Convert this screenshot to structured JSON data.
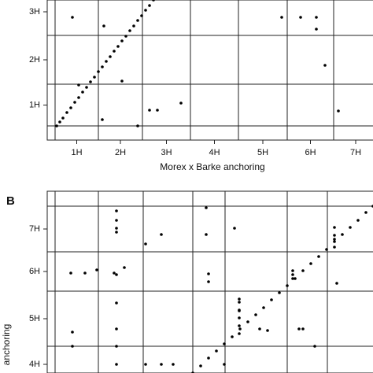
{
  "chart_data": [
    {
      "type": "scatter",
      "x_label": "Morex x Barke anchoring",
      "xlim": [
        -10,
        404
      ],
      "ylim": [
        -18,
        160
      ],
      "xgrid": [
        0,
        55,
        111,
        172,
        233,
        295,
        354,
        410
      ],
      "x_categories": [
        "1H",
        "2H",
        "3H",
        "4H",
        "5H",
        "6H",
        "7H"
      ],
      "ygrid": [
        0,
        53,
        115,
        175
      ],
      "y_categories": [
        "1H",
        "2H",
        "3H"
      ],
      "series": [
        {
          "color": "#000000",
          "x": [
            2,
            6,
            10,
            15,
            20,
            25,
            30,
            35,
            40,
            45,
            50,
            55,
            60,
            65,
            70,
            75,
            80,
            85,
            90,
            95,
            100,
            105,
            110,
            115,
            120,
            125,
            22,
            62,
            288,
            312,
            332,
            332,
            30,
            85,
            60,
            120,
            130,
            160,
            105,
            343,
            360
          ],
          "values": [
            0,
            5,
            10,
            17,
            23,
            30,
            36,
            43,
            49,
            56,
            62,
            69,
            75,
            82,
            88,
            95,
            101,
            108,
            114,
            121,
            127,
            134,
            140,
            147,
            153,
            160,
            138,
            127,
            138,
            138,
            138,
            123,
            52,
            57,
            8,
            20,
            20,
            29,
            0,
            77,
            19
          ]
        }
      ]
    },
    {
      "type": "scatter",
      "panel_label": "B",
      "y_label": "anchoring",
      "xlim": [
        -10,
        404
      ],
      "ylim": [
        0,
        231
      ],
      "xgrid": [
        0,
        55,
        112,
        175,
        216,
        295,
        346
      ],
      "ygrid": [
        -12,
        34,
        104,
        154,
        212
      ],
      "y_categories": [
        "4H",
        "5H",
        "6H",
        "7H"
      ],
      "series": [
        {
          "color": "#000000",
          "x": [
            175,
            185,
            195,
            205,
            215,
            225,
            235,
            245,
            255,
            265,
            275,
            285,
            295,
            305,
            315,
            325,
            335,
            345,
            355,
            365,
            375,
            385,
            395,
            404,
            234,
            234,
            234,
            234,
            234,
            302,
            302,
            302,
            355,
            355,
            355,
            355,
            78,
            78,
            78,
            78,
            192,
            192,
            135,
            115,
            20,
            38,
            53,
            75,
            78,
            195,
            195,
            88,
            228,
            234,
            234,
            78,
            78,
            22,
            78,
            22,
            78,
            115,
            135,
            150,
            215,
            310,
            315,
            330,
            358,
            260,
            270
          ],
          "values": [
            0,
            9,
            19,
            28,
            37,
            46,
            56,
            65,
            74,
            83,
            93,
            102,
            111,
            120,
            130,
            139,
            148,
            157,
            167,
            176,
            185,
            194,
            204,
            212,
            50,
            60,
            70,
            80,
            90,
            120,
            125,
            130,
            160,
            170,
            175,
            185,
            206,
            194,
            184,
            179,
            210,
            176,
            176,
            164,
            127,
            127,
            131,
            127,
            125,
            126,
            116,
            134,
            184,
            94,
            79,
            89,
            56,
            52,
            34,
            34,
            11,
            11,
            11,
            11,
            11,
            56,
            56,
            34,
            114,
            56,
            54
          ]
        }
      ]
    }
  ]
}
